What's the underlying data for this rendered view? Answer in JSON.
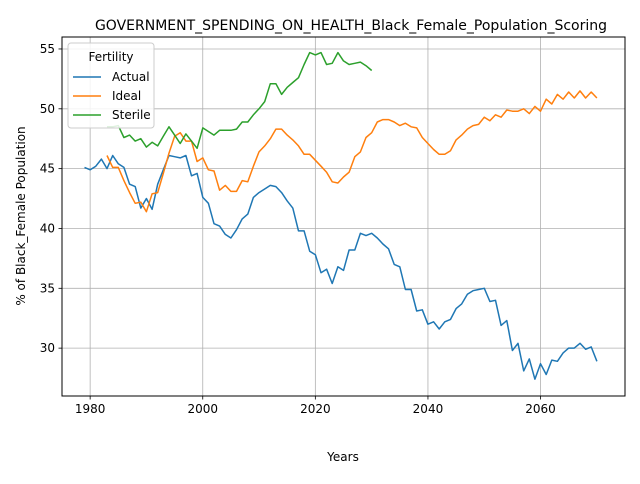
{
  "chart_data": {
    "type": "line",
    "title": "GOVERNMENT_SPENDING_ON_HEALTH_Black_Female_Population_Scoring",
    "xlabel": "Years",
    "ylabel": "% of Black_Female Population",
    "xlim": [
      1975,
      2075
    ],
    "ylim": [
      26,
      56
    ],
    "xticks": [
      1980,
      2000,
      2020,
      2040,
      2060
    ],
    "yticks": [
      30,
      35,
      40,
      45,
      50,
      55
    ],
    "grid": true,
    "legend": {
      "title": "Fertility",
      "position": "upper-left"
    },
    "series": [
      {
        "name": "Actual",
        "color": "#1f77b4",
        "x": [
          1979,
          1980,
          1981,
          1982,
          1983,
          1984,
          1985,
          1986,
          1987,
          1988,
          1989,
          1990,
          1991,
          1992,
          1993,
          1994,
          1995,
          1996,
          1997,
          1998,
          1999,
          2000,
          2001,
          2002,
          2003,
          2004,
          2005,
          2006,
          2007,
          2008,
          2009,
          2010,
          2011,
          2012,
          2013,
          2014,
          2015,
          2016,
          2017,
          2018,
          2019,
          2020,
          2021,
          2022,
          2023,
          2024,
          2025,
          2026,
          2027,
          2028,
          2029,
          2030,
          2031,
          2032,
          2033,
          2034,
          2035,
          2036,
          2037,
          2038,
          2039,
          2040,
          2041,
          2042,
          2043,
          2044,
          2045,
          2046,
          2047,
          2048,
          2049,
          2050,
          2051,
          2052,
          2053,
          2054,
          2055,
          2056,
          2057,
          2058,
          2059,
          2060,
          2061,
          2062,
          2063,
          2064,
          2065,
          2066,
          2067,
          2068,
          2069,
          2070
        ],
        "values": [
          45.1,
          44.9,
          45.2,
          45.8,
          45.0,
          46.1,
          45.4,
          45.1,
          43.7,
          43.5,
          41.7,
          42.5,
          41.6,
          43.7,
          44.9,
          46.1,
          46.0,
          45.9,
          46.1,
          44.4,
          44.6,
          42.6,
          42.1,
          40.4,
          40.2,
          39.5,
          39.2,
          39.9,
          40.8,
          41.2,
          42.6,
          43.0,
          43.3,
          43.6,
          43.5,
          43.0,
          42.3,
          41.7,
          39.8,
          39.8,
          38.1,
          37.8,
          36.3,
          36.6,
          35.4,
          36.8,
          36.5,
          38.2,
          38.2,
          39.6,
          39.4,
          39.6,
          39.2,
          38.7,
          38.3,
          37.0,
          36.8,
          34.9,
          34.9,
          33.1,
          33.2,
          32.0,
          32.2,
          31.6,
          32.2,
          32.4,
          33.3,
          33.7,
          34.5,
          34.8,
          34.9,
          35.0,
          33.9,
          34.0,
          31.9,
          32.3,
          29.8,
          30.4,
          28.1,
          29.1,
          27.4,
          28.7,
          27.8,
          29.0,
          28.9,
          29.6,
          30.0,
          30.0,
          30.4,
          29.9,
          30.1,
          28.9
        ]
      },
      {
        "name": "Ideal",
        "color": "#ff7f0e",
        "x": [
          1983,
          1984,
          1985,
          1986,
          1987,
          1988,
          1989,
          1990,
          1991,
          1992,
          1993,
          1994,
          1995,
          1996,
          1997,
          1998,
          1999,
          2000,
          2001,
          2002,
          2003,
          2004,
          2005,
          2006,
          2007,
          2008,
          2009,
          2010,
          2011,
          2012,
          2013,
          2014,
          2015,
          2016,
          2017,
          2018,
          2019,
          2020,
          2021,
          2022,
          2023,
          2024,
          2025,
          2026,
          2027,
          2028,
          2029,
          2030,
          2031,
          2032,
          2033,
          2034,
          2035,
          2036,
          2037,
          2038,
          2039,
          2040,
          2041,
          2042,
          2043,
          2044,
          2045,
          2046,
          2047,
          2048,
          2049,
          2050,
          2051,
          2052,
          2053,
          2054,
          2055,
          2056,
          2057,
          2058,
          2059,
          2060,
          2061,
          2062,
          2063,
          2064,
          2065,
          2066,
          2067,
          2068,
          2069,
          2070
        ],
        "values": [
          46.1,
          45.1,
          45.1,
          44.0,
          43.0,
          42.1,
          42.2,
          41.4,
          42.9,
          43.0,
          44.6,
          46.3,
          47.7,
          48.0,
          47.3,
          47.3,
          45.6,
          45.9,
          44.9,
          44.8,
          43.2,
          43.6,
          43.1,
          43.1,
          44.0,
          43.9,
          45.2,
          46.4,
          46.9,
          47.5,
          48.3,
          48.3,
          47.8,
          47.4,
          46.9,
          46.2,
          46.2,
          45.7,
          45.2,
          44.7,
          43.9,
          43.8,
          44.3,
          44.7,
          46.0,
          46.4,
          47.6,
          48.0,
          48.9,
          49.1,
          49.1,
          48.9,
          48.6,
          48.8,
          48.5,
          48.4,
          47.6,
          47.1,
          46.6,
          46.2,
          46.2,
          46.5,
          47.4,
          47.8,
          48.3,
          48.6,
          48.7,
          49.3,
          49.0,
          49.5,
          49.3,
          49.9,
          49.8,
          49.8,
          50.0,
          49.6,
          50.2,
          49.8,
          50.8,
          50.4,
          51.2,
          50.8,
          51.4,
          50.9,
          51.5,
          50.9,
          51.4,
          50.9
        ]
      },
      {
        "name": "Sterile",
        "color": "#2ca02c",
        "x": [
          1983,
          1984,
          1985,
          1986,
          1987,
          1988,
          1989,
          1990,
          1991,
          1992,
          1993,
          1994,
          1995,
          1996,
          1997,
          1998,
          1999,
          2000,
          2001,
          2002,
          2003,
          2004,
          2005,
          2006,
          2007,
          2008,
          2009,
          2010,
          2011,
          2012,
          2013,
          2014,
          2015,
          2016,
          2017,
          2018,
          2019,
          2020,
          2021,
          2022,
          2023,
          2024,
          2025,
          2026,
          2027,
          2028,
          2029,
          2030
        ],
        "values": [
          48.5,
          48.5,
          48.6,
          47.6,
          47.8,
          47.3,
          47.5,
          46.8,
          47.2,
          46.9,
          47.7,
          48.5,
          47.8,
          47.1,
          47.9,
          47.3,
          46.7,
          48.4,
          48.1,
          47.8,
          48.2,
          48.2,
          48.2,
          48.3,
          48.9,
          48.9,
          49.5,
          50.0,
          50.6,
          52.1,
          52.1,
          51.2,
          51.8,
          52.2,
          52.6,
          53.7,
          54.7,
          54.5,
          54.7,
          53.7,
          53.8,
          54.7,
          54.0,
          53.7,
          53.8,
          53.9,
          53.6,
          53.2
        ]
      }
    ]
  }
}
